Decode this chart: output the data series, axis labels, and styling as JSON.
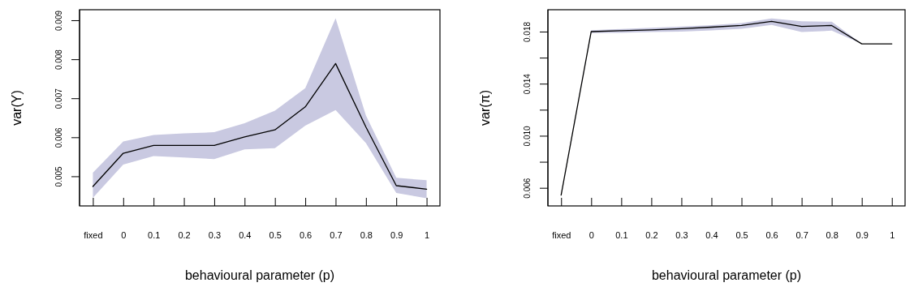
{
  "chart_data": [
    {
      "type": "line",
      "xlabel": "behavioural parameter (p)",
      "ylabel": "var(Y)",
      "categories": [
        "fixed",
        "0",
        "0.1",
        "0.2",
        "0.3",
        "0.4",
        "0.5",
        "0.6",
        "0.7",
        "0.8",
        "0.9",
        "1"
      ],
      "ylim": [
        0.00424,
        0.00927
      ],
      "yticks": [
        0.005,
        0.006,
        0.007,
        0.008,
        0.009
      ],
      "grid": false,
      "marker": "none",
      "line_style": "solid",
      "series": [
        {
          "color": "#000000",
          "values": [
            0.00474,
            0.00559,
            0.00579,
            0.00579,
            0.00579,
            0.00601,
            0.00619,
            0.00678,
            0.00789,
            0.00626,
            0.00476,
            0.00467
          ],
          "lower": [
            0.00445,
            0.0053,
            0.00552,
            0.00548,
            0.00544,
            0.00569,
            0.00572,
            0.0063,
            0.0067,
            0.00585,
            0.00457,
            0.00444
          ],
          "upper": [
            0.00509,
            0.00589,
            0.00606,
            0.0061,
            0.00613,
            0.00636,
            0.00668,
            0.00726,
            0.00905,
            0.00656,
            0.00496,
            0.0049
          ]
        }
      ]
    },
    {
      "type": "line",
      "xlabel": "behavioural parameter (p)",
      "ylabel": "var(π)",
      "categories": [
        "fixed",
        "0",
        "0.1",
        "0.2",
        "0.3",
        "0.4",
        "0.5",
        "0.6",
        "0.7",
        "0.8",
        "0.9",
        "1"
      ],
      "ylim": [
        0.00461,
        0.01968
      ],
      "yticks": [
        0.006,
        {
          "value": 0.008,
          "label": null
        },
        {
          "value": 0.01,
          "label": "0.010"
        },
        {
          "value": 0.012,
          "label": null
        },
        0.014,
        {
          "value": 0.016,
          "label": null
        },
        0.018
      ],
      "grid": false,
      "marker": "none",
      "line_style": "solid",
      "series": [
        {
          "color": "#000000",
          "values": [
            0.00544,
            0.018,
            0.01807,
            0.01813,
            0.01822,
            0.01834,
            0.01847,
            0.01878,
            0.0184,
            0.01847,
            0.01706,
            0.01706
          ],
          "lower": [
            0.00544,
            0.01789,
            0.01791,
            0.01796,
            0.018,
            0.01809,
            0.01822,
            0.01852,
            0.01796,
            0.01807,
            0.01706,
            0.01706
          ],
          "upper": [
            0.00544,
            0.01811,
            0.0182,
            0.01829,
            0.01839,
            0.0185,
            0.01865,
            0.01901,
            0.01879,
            0.01876,
            0.01706,
            0.01706
          ]
        }
      ]
    }
  ]
}
